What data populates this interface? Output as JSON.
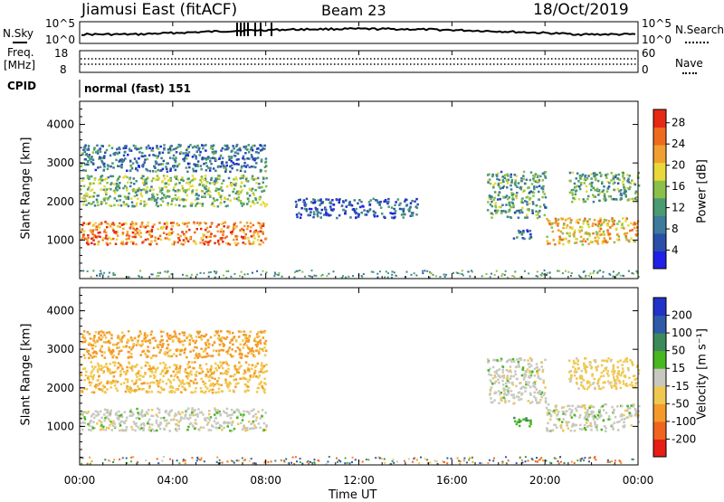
{
  "header": {
    "station": "Jiamusi East (fitACF)",
    "beam": "Beam 23",
    "date": "18/Oct/2019"
  },
  "sky_panel": {
    "left_label": "N.Sky",
    "right_label": "N.Search",
    "left_top": "10^5",
    "left_bottom": "10^0",
    "right_top": "10^5",
    "right_bottom": "10^0"
  },
  "freq_panel": {
    "left_label_line1": "Freq.",
    "left_label_line2": "[MHz]",
    "left_top": "18",
    "left_bottom": "8",
    "right_top": "60",
    "right_bottom": "0",
    "right_label": "Nave"
  },
  "cpid": {
    "label": "CPID",
    "value": "normal (fast) 151"
  },
  "colors": {
    "power_scale": [
      "#2020e6",
      "#2a4fa8",
      "#3d7a9c",
      "#4a9a72",
      "#8cc048",
      "#e8d83a",
      "#f0a030",
      "#f06a1e",
      "#e62814"
    ],
    "velocity_scale": [
      "#e61e14",
      "#f06420",
      "#f59a28",
      "#f0c850",
      "#c8c8c0",
      "#48b820",
      "#3c8a5a",
      "#2e5aa8",
      "#2032c8"
    ]
  },
  "chart_data": [
    {
      "type": "heatmap",
      "title": "Power",
      "ylabel": "Slant Range [km]",
      "y_ticks": [
        "1000",
        "2000",
        "3000",
        "4000"
      ],
      "ylim": [
        0,
        4600
      ],
      "colorbar_label": "Power [dB]",
      "colorbar_ticks": [
        "4",
        "8",
        "12",
        "16",
        "20",
        "24",
        "28"
      ],
      "colorbar_range": [
        0,
        30
      ],
      "echo_bands": [
        {
          "t_start": 0.0,
          "t_end": 8.0,
          "range_low": 900,
          "range_high": 1500,
          "power": 24
        },
        {
          "t_start": 0.0,
          "t_end": 8.0,
          "range_low": 1900,
          "range_high": 2700,
          "power": 14
        },
        {
          "t_start": 0.0,
          "t_end": 8.0,
          "range_low": 2800,
          "range_high": 3500,
          "power": 8
        },
        {
          "t_start": 9.2,
          "t_end": 14.5,
          "range_low": 1600,
          "range_high": 2100,
          "power": 6
        },
        {
          "t_start": 17.5,
          "t_end": 20.0,
          "range_low": 1600,
          "range_high": 2800,
          "power": 12
        },
        {
          "t_start": 18.6,
          "t_end": 19.4,
          "range_low": 1000,
          "range_high": 1300,
          "power": 8
        },
        {
          "t_start": 20.0,
          "t_end": 24.0,
          "range_low": 900,
          "range_high": 1600,
          "power": 20
        },
        {
          "t_start": 21.0,
          "t_end": 24.0,
          "range_low": 2000,
          "range_high": 2800,
          "power": 12
        }
      ]
    },
    {
      "type": "heatmap",
      "title": "Velocity",
      "ylabel": "Slant Range [km]",
      "y_ticks": [
        "1000",
        "2000",
        "3000",
        "4000"
      ],
      "ylim": [
        0,
        4600
      ],
      "xlabel": "Time UT",
      "x_ticks": [
        "00:00",
        "04:00",
        "08:00",
        "12:00",
        "16:00",
        "20:00",
        "00:00"
      ],
      "xlim": [
        0,
        24
      ],
      "colorbar_label": "Velocity [m s⁻¹]",
      "colorbar_ticks": [
        "-200",
        "-100",
        "-50",
        "-15",
        "15",
        "50",
        "100",
        "200"
      ],
      "colorbar_range": [
        -250,
        250
      ],
      "echo_bands": [
        {
          "t_start": 0.0,
          "t_end": 8.0,
          "range_low": 900,
          "range_high": 1500,
          "velocity": 0
        },
        {
          "t_start": 0.0,
          "t_end": 8.0,
          "range_low": 1900,
          "range_high": 2700,
          "velocity": -40
        },
        {
          "t_start": 0.0,
          "t_end": 8.0,
          "range_low": 2800,
          "range_high": 3500,
          "velocity": -60
        },
        {
          "t_start": 17.5,
          "t_end": 20.0,
          "range_low": 1600,
          "range_high": 2800,
          "velocity": 0
        },
        {
          "t_start": 18.6,
          "t_end": 19.4,
          "range_low": 1000,
          "range_high": 1300,
          "velocity": 40
        },
        {
          "t_start": 20.0,
          "t_end": 24.0,
          "range_low": 900,
          "range_high": 1600,
          "velocity": 0
        },
        {
          "t_start": 21.0,
          "t_end": 24.0,
          "range_low": 2000,
          "range_high": 2800,
          "velocity": -30
        }
      ]
    }
  ]
}
